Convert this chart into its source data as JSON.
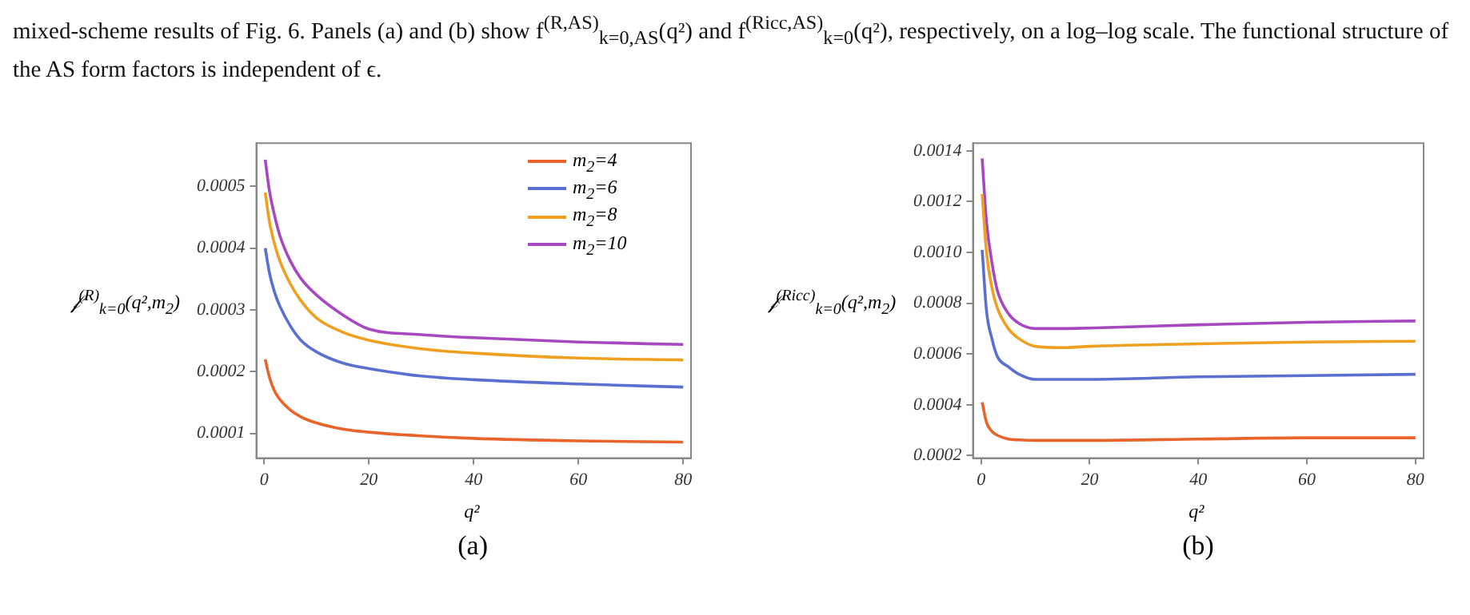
{
  "chart_data": [
    {
      "type": "line",
      "title": "(a)",
      "annotations": [
        "mixed-scheme results of Fig. 6. Panels (a) and (b) show f$^{(R,AS)}$$_{k=0,AS}$(q²) and f$^{(Ricc,AS)}$$_{k=0}$(q²), respectively, on a log–log scale. The functional structure of the AS form factors is independent of ϵ."
      ],
      "xlabel": "q²",
      "ylabel": "𝒻$^{(R)}$$_{k=0}$(q²,m$_{2}$)",
      "x": [
        0.2,
        1,
        2,
        3,
        5,
        7,
        10,
        15,
        20,
        30,
        40,
        60,
        80
      ],
      "xlim": [
        -1.5,
        81.5
      ],
      "xticks": [
        0,
        20,
        40,
        60,
        80
      ],
      "ylim": [
        6e-05,
        0.00057
      ],
      "yticks": [
        0.0001,
        0.0002,
        0.0003,
        0.0004,
        0.0005
      ],
      "grid": false,
      "legend": "top right",
      "line_style": "solid",
      "marker": "none",
      "series": [
        {
          "name": "m$_{2}$=4",
          "color": "#e8642a",
          "values": [
            0.00022,
            0.000191,
            0.000168,
            0.000155,
            0.000138,
            0.000127,
            0.000117,
            0.000107,
            0.000102,
            9.6e-05,
            9.2e-05,
            8.8e-05,
            8.6e-05
          ]
        },
        {
          "name": "m$_{2}$=6",
          "color": "#5a6fd0",
          "values": [
            0.0004,
            0.00036,
            0.000328,
            0.000306,
            0.000274,
            0.000251,
            0.000232,
            0.000214,
            0.000205,
            0.000193,
            0.000187,
            0.00018,
            0.000175
          ]
        },
        {
          "name": "m$_{2}$=8",
          "color": "#f0a020",
          "values": [
            0.00049,
            0.000443,
            0.000406,
            0.000379,
            0.000342,
            0.000315,
            0.000287,
            0.000264,
            0.000251,
            0.000237,
            0.00023,
            0.000222,
            0.000219
          ]
        },
        {
          "name": "m$_{2}$=10",
          "color": "#a848c0",
          "values": [
            0.000543,
            0.000493,
            0.000452,
            0.00042,
            0.000379,
            0.000351,
            0.000324,
            0.000292,
            0.000269,
            0.00026,
            0.000255,
            0.000248,
            0.000244
          ]
        }
      ]
    },
    {
      "type": "line",
      "title": "(b)",
      "xlabel": "q²",
      "ylabel": "𝒻$^{(Ricc)}$$_{k=0}$(q²,m$_{2}$)",
      "x": [
        0.2,
        1,
        2,
        3,
        5,
        7,
        10,
        15,
        20,
        40,
        60,
        80
      ],
      "xlim": [
        -1.5,
        81.5
      ],
      "xticks": [
        0,
        20,
        40,
        60,
        80
      ],
      "ylim": [
        0.00019,
        0.00143
      ],
      "yticks": [
        0.0002,
        0.0004,
        0.0006,
        0.0008,
        {
          "value": 0.001,
          "label": "0.0010"
        },
        0.0012,
        0.0014
      ],
      "grid": false,
      "line_style": "solid",
      "marker": "none",
      "series": [
        {
          "color": "#e8642a",
          "values": [
            0.00041,
            0.00033,
            0.000295,
            0.00028,
            0.000265,
            0.000262,
            0.00026,
            0.00026,
            0.00026,
            0.000265,
            0.00027,
            0.00027
          ]
        },
        {
          "color": "#5a6fd0",
          "values": [
            0.00101,
            0.00077,
            0.00066,
            0.00059,
            0.00055,
            0.00052,
            0.0005,
            0.0005,
            0.0005,
            0.00051,
            0.000515,
            0.00052
          ]
        },
        {
          "color": "#f0a020",
          "values": [
            0.00123,
            0.001,
            0.00086,
            0.00078,
            0.0007,
            0.00066,
            0.00063,
            0.000625,
            0.00063,
            0.00064,
            0.000647,
            0.00065
          ]
        },
        {
          "color": "#a848c0",
          "values": [
            0.00137,
            0.00112,
            0.00096,
            0.00085,
            0.00076,
            0.00072,
            0.0007,
            0.0007,
            0.000702,
            0.000715,
            0.000725,
            0.00073
          ]
        }
      ]
    }
  ]
}
